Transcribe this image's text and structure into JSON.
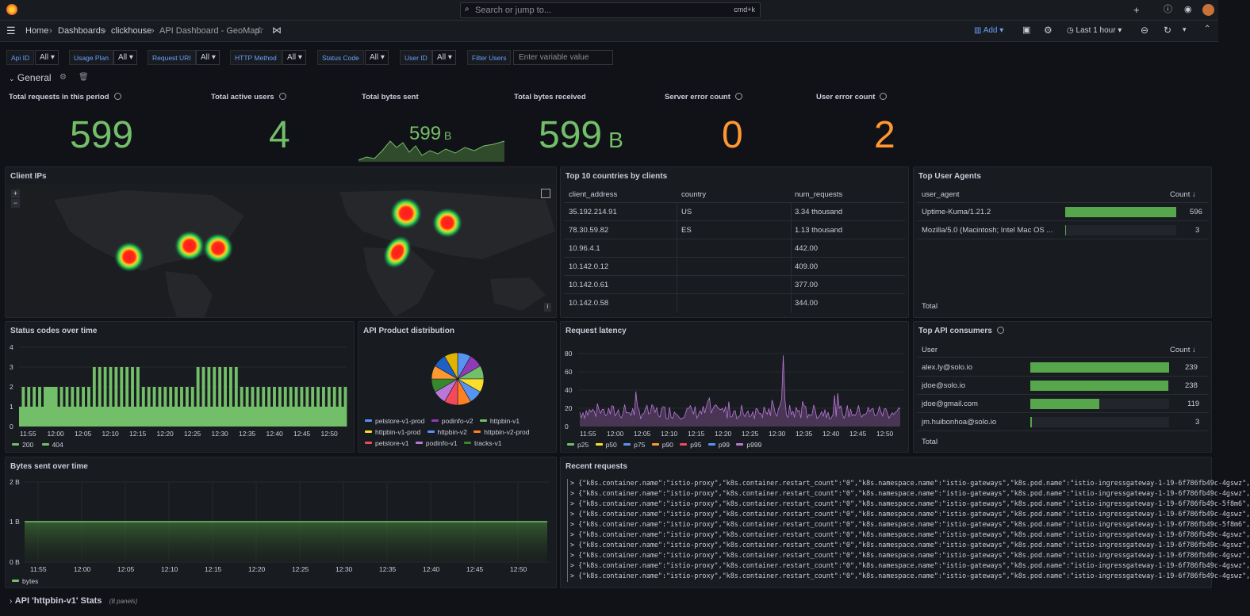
{
  "topbar": {
    "search_placeholder": "Search or jump to...",
    "search_shortcut": "cmd+k"
  },
  "nav": {
    "crumbs": [
      "Home",
      "Dashboards",
      "clickhouse",
      "API Dashboard - GeoMap"
    ],
    "add_label": "Add",
    "time_range": "Last 1 hour"
  },
  "variables": [
    {
      "label": "Api ID",
      "value": "All"
    },
    {
      "label": "Usage Plan",
      "value": "All"
    },
    {
      "label": "Request URI",
      "value": "All"
    },
    {
      "label": "HTTP Method",
      "value": "All"
    },
    {
      "label": "Status Code",
      "value": "All"
    },
    {
      "label": "User ID",
      "value": "All"
    },
    {
      "label": "Filter Users",
      "placeholder": "Enter variable value"
    }
  ],
  "general_row": "General",
  "stats": [
    {
      "title": "Total requests in this period",
      "value": "599",
      "unit": "",
      "color": "#73bf69"
    },
    {
      "title": "Total active users",
      "value": "4",
      "unit": "",
      "color": "#73bf69"
    },
    {
      "title": "Total bytes sent",
      "value": "599",
      "unit": "B",
      "color": "#73bf69"
    },
    {
      "title": "Total bytes received",
      "value": "599",
      "unit": "B",
      "color": "#73bf69"
    },
    {
      "title": "Server error count",
      "value": "0",
      "unit": "",
      "color": "#ff9830"
    },
    {
      "title": "User error count",
      "value": "2",
      "unit": "",
      "color": "#ff9830"
    }
  ],
  "panels": {
    "client_ips": "Client IPs",
    "top_countries": "Top 10 countries by clients",
    "top_agents": "Top User Agents",
    "status_codes": "Status codes over time",
    "api_product": "API Product distribution",
    "latency": "Request latency",
    "top_consumers": "Top API consumers",
    "bytes_sent": "Bytes sent over time",
    "recent": "Recent requests"
  },
  "countries": {
    "headers": [
      "client_address",
      "country",
      "num_requests"
    ],
    "rows": [
      [
        "35.192.214.91",
        "US",
        "3.34 thousand"
      ],
      [
        "78.30.59.82",
        "ES",
        "1.13 thousand"
      ],
      [
        "10.96.4.1",
        "",
        "442.00"
      ],
      [
        "10.142.0.12",
        "",
        "409.00"
      ],
      [
        "10.142.0.61",
        "",
        "377.00"
      ],
      [
        "10.142.0.58",
        "",
        "344.00"
      ]
    ]
  },
  "agents": {
    "headers": [
      "user_agent",
      "Count ↓"
    ],
    "rows": [
      {
        "name": "Uptime-Kuma/1.21.2",
        "count": "596",
        "frac": 1.0
      },
      {
        "name": "Mozilla/5.0 (Macintosh; Intel Mac OS ...",
        "count": "3",
        "frac": 0.005
      }
    ],
    "footer": "Total"
  },
  "consumers": {
    "headers": [
      "User",
      "Count ↓"
    ],
    "rows": [
      {
        "name": "alex.ly@solo.io",
        "count": "239",
        "frac": 1.0
      },
      {
        "name": "jdoe@solo.io",
        "count": "238",
        "frac": 0.996
      },
      {
        "name": "jdoe@gmail.com",
        "count": "119",
        "frac": 0.498
      },
      {
        "name": "jm.huibonhoa@solo.io",
        "count": "3",
        "frac": 0.0125
      }
    ],
    "footer": "Total"
  },
  "time_ticks": [
    "11:55",
    "12:00",
    "12:05",
    "12:10",
    "12:15",
    "12:20",
    "12:25",
    "12:30",
    "12:35",
    "12:40",
    "12:45",
    "12:50"
  ],
  "status_legend": [
    {
      "name": "200",
      "color": "#73bf69"
    },
    {
      "name": "404",
      "color": "#73bf69"
    }
  ],
  "status_y": [
    "0",
    "1",
    "2",
    "3",
    "4"
  ],
  "product_legend": [
    {
      "name": "petstore-v1-prod",
      "color": "#5794f2"
    },
    {
      "name": "podinfo-v2",
      "color": "#8f3bb8"
    },
    {
      "name": "httpbin-v1",
      "color": "#73bf69"
    },
    {
      "name": "httpbin-v1-prod",
      "color": "#fade2a"
    },
    {
      "name": "httpbin-v2",
      "color": "#5794f2"
    },
    {
      "name": "httpbin-v2-prod",
      "color": "#ff7f27"
    },
    {
      "name": "petstore-v1",
      "color": "#f2495c"
    },
    {
      "name": "podinfo-v1",
      "color": "#b877d9"
    },
    {
      "name": "tracks-v1",
      "color": "#37872d"
    }
  ],
  "latency_y": [
    "0",
    "20",
    "40",
    "60",
    "80"
  ],
  "latency_legend": [
    {
      "name": "p25",
      "color": "#73bf69"
    },
    {
      "name": "p50",
      "color": "#fade2a"
    },
    {
      "name": "p75",
      "color": "#5794f2"
    },
    {
      "name": "p90",
      "color": "#ff9830"
    },
    {
      "name": "p95",
      "color": "#f2495c"
    },
    {
      "name": "p99",
      "color": "#5794f2"
    },
    {
      "name": "p999",
      "color": "#b877d9"
    }
  ],
  "bytes_y": [
    "0 B",
    "1 B",
    "2 B"
  ],
  "bytes_legend": [
    {
      "name": "bytes",
      "color": "#73bf69"
    }
  ],
  "recent_lines": [
    "{\"k8s.container.name\":\"istio-proxy\",\"k8s.container.restart_count\":\"0\",\"k8s.namespace.name\":\"istio-gateways\",\"k8s.pod.name\":\"istio-ingressgateway-1-19-6f786fb49c-4gswz\",",
    "{\"k8s.container.name\":\"istio-proxy\",\"k8s.container.restart_count\":\"0\",\"k8s.namespace.name\":\"istio-gateways\",\"k8s.pod.name\":\"istio-ingressgateway-1-19-6f786fb49c-4gswz\",",
    "{\"k8s.container.name\":\"istio-proxy\",\"k8s.container.restart_count\":\"0\",\"k8s.namespace.name\":\"istio-gateways\",\"k8s.pod.name\":\"istio-ingressgateway-1-19-6f786fb49c-5f8m6\",",
    "{\"k8s.container.name\":\"istio-proxy\",\"k8s.container.restart_count\":\"0\",\"k8s.namespace.name\":\"istio-gateways\",\"k8s.pod.name\":\"istio-ingressgateway-1-19-6f786fb49c-4gswz\",",
    "{\"k8s.container.name\":\"istio-proxy\",\"k8s.container.restart_count\":\"0\",\"k8s.namespace.name\":\"istio-gateways\",\"k8s.pod.name\":\"istio-ingressgateway-1-19-6f786fb49c-5f8m6\",",
    "{\"k8s.container.name\":\"istio-proxy\",\"k8s.container.restart_count\":\"0\",\"k8s.namespace.name\":\"istio-gateways\",\"k8s.pod.name\":\"istio-ingressgateway-1-19-6f786fb49c-4gswz\",",
    "{\"k8s.container.name\":\"istio-proxy\",\"k8s.container.restart_count\":\"0\",\"k8s.namespace.name\":\"istio-gateways\",\"k8s.pod.name\":\"istio-ingressgateway-1-19-6f786fb49c-4gswz\",",
    "{\"k8s.container.name\":\"istio-proxy\",\"k8s.container.restart_count\":\"0\",\"k8s.namespace.name\":\"istio-gateways\",\"k8s.pod.name\":\"istio-ingressgateway-1-19-6f786fb49c-4gswz\",",
    "{\"k8s.container.name\":\"istio-proxy\",\"k8s.container.restart_count\":\"0\",\"k8s.namespace.name\":\"istio-gateways\",\"k8s.pod.name\":\"istio-ingressgateway-1-19-6f786fb49c-4gswz\",",
    "{\"k8s.container.name\":\"istio-proxy\",\"k8s.container.restart_count\":\"0\",\"k8s.namespace.name\":\"istio-gateways\",\"k8s.pod.name\":\"istio-ingressgateway-1-19-6f786fb49c-4gswz\","
  ],
  "collapsed_row": {
    "title": "API 'httpbin-v1' Stats",
    "count": "(8 panels)"
  }
}
